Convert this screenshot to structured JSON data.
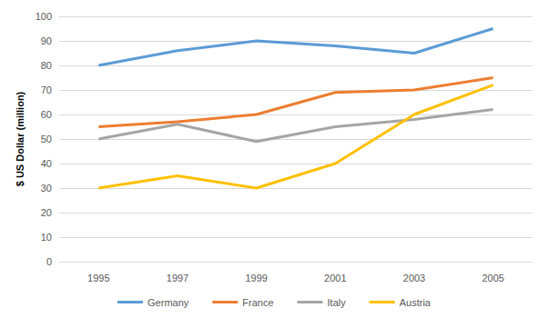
{
  "chart_data": {
    "type": "line",
    "y_label": "$ US Dollar (million)",
    "categories": [
      "1995",
      "1997",
      "1999",
      "2001",
      "2003",
      "2005"
    ],
    "series": [
      {
        "name": "Germany",
        "color": "#5b9bd5",
        "values": [
          80,
          86,
          90,
          88,
          85,
          95
        ]
      },
      {
        "name": "France",
        "color": "#ed7d31",
        "values": [
          55,
          57,
          60,
          69,
          70,
          75
        ]
      },
      {
        "name": "Italy",
        "color": "#a5a5a5",
        "values": [
          50,
          56,
          49,
          55,
          58,
          62
        ]
      },
      {
        "name": "Austria",
        "color": "#ffc000",
        "values": [
          30,
          35,
          30,
          40,
          60,
          72
        ]
      }
    ],
    "ylim": [
      0,
      100
    ],
    "yticks": [
      0,
      10,
      20,
      30,
      40,
      50,
      60,
      70,
      80,
      90,
      100
    ],
    "grid": true,
    "legend": "bottom"
  }
}
